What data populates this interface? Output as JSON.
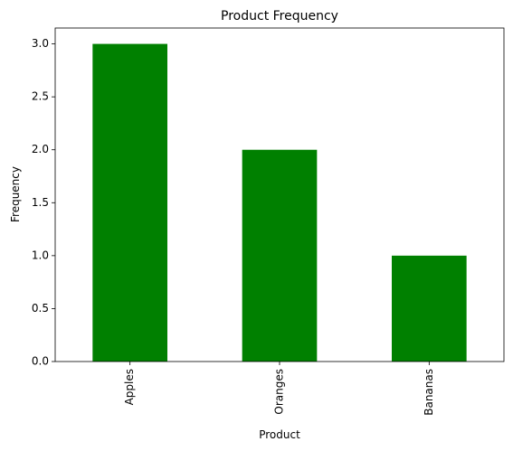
{
  "chart_data": {
    "type": "bar",
    "title": "Product Frequency",
    "x_label": "Product",
    "y_label": "Frequency",
    "categories": [
      "Apples",
      "Oranges",
      "Bananas"
    ],
    "values": [
      3,
      2,
      1
    ],
    "color": "#008000",
    "ylim": [
      0,
      3.15
    ],
    "yticks": [
      {
        "value": 0,
        "label": "0.0"
      },
      0.5,
      {
        "value": 1,
        "label": "1.0"
      },
      1.5,
      {
        "value": 2,
        "label": "2.0"
      },
      2.5,
      {
        "value": 3,
        "label": "3.0"
      }
    ],
    "grid": false
  }
}
